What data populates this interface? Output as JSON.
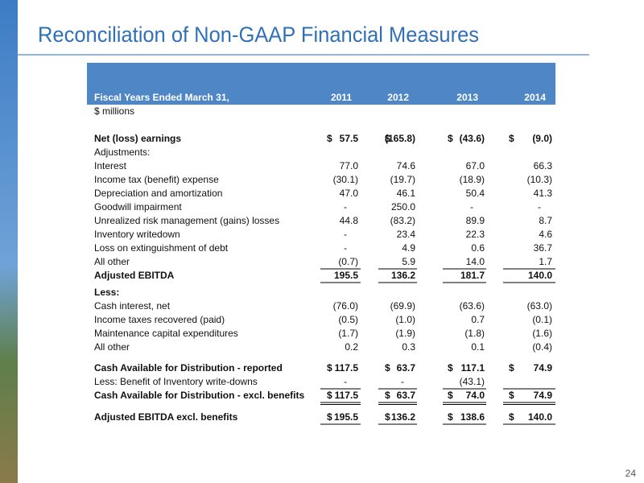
{
  "header": {
    "title": "Reconciliation of Non-GAAP Financial Measures"
  },
  "page_number": "24",
  "table": {
    "heading": "Fiscal Years Ended March 31,",
    "columns": [
      "2011",
      "2012",
      "2013",
      "2014"
    ],
    "units": "$ millions",
    "rows": [
      {
        "label": "Net (loss) earnings",
        "currency": "$",
        "values": [
          "57.5",
          "(165.8)",
          "(43.6)",
          "(9.0)"
        ],
        "bold": true
      },
      {
        "label": "Adjustments:"
      },
      {
        "label": "Interest",
        "values": [
          "77.0",
          "74.6",
          "67.0",
          "66.3"
        ]
      },
      {
        "label": "Income tax (benefit) expense",
        "values": [
          "(30.1)",
          "(19.7)",
          "(18.9)",
          "(10.3)"
        ]
      },
      {
        "label": "Depreciation and amortization",
        "values": [
          "47.0",
          "46.1",
          "50.4",
          "41.3"
        ]
      },
      {
        "label": "Goodwill impairment",
        "values": [
          "-",
          "250.0",
          "-",
          "-"
        ]
      },
      {
        "label": "Unrealized risk management (gains) losses",
        "values": [
          "44.8",
          "(83.2)",
          "89.9",
          "8.7"
        ]
      },
      {
        "label": "Inventory writedown",
        "values": [
          "-",
          "23.4",
          "22.3",
          "4.6"
        ]
      },
      {
        "label": "Loss on extinguishment of debt",
        "values": [
          "-",
          "4.9",
          "0.6",
          "36.7"
        ]
      },
      {
        "label": "All other",
        "values": [
          "(0.7)",
          "5.9",
          "14.0",
          "1.7"
        ],
        "rule": "single"
      },
      {
        "label": "Adjusted EBITDA",
        "values": [
          "195.5",
          "136.2",
          "181.7",
          "140.0"
        ],
        "bold": true,
        "rule": "single"
      },
      {
        "label": "Less:",
        "bold": true
      },
      {
        "label": "Cash interest, net",
        "values": [
          "(76.0)",
          "(69.9)",
          "(63.6)",
          "(63.0)"
        ]
      },
      {
        "label": "Income taxes recovered (paid)",
        "values": [
          "(0.5)",
          "(1.0)",
          "0.7",
          "(0.1)"
        ]
      },
      {
        "label": "Maintenance capital expenditures",
        "values": [
          "(1.7)",
          "(1.9)",
          "(1.8)",
          "(1.6)"
        ]
      },
      {
        "label": "All other",
        "values": [
          "0.2",
          "0.3",
          "0.1",
          "(0.4)"
        ]
      },
      {
        "label": "Cash Available for Distribution - reported",
        "currency": "$",
        "values": [
          "117.5",
          "63.7",
          "117.1",
          "74.9"
        ],
        "bold": true
      },
      {
        "label": "Less:  Benefit of Inventory write-downs",
        "values": [
          "-",
          "-",
          "(43.1)",
          null
        ],
        "rule": "single"
      },
      {
        "label": "Cash Available for Distribution - excl. benefits",
        "currency": "$",
        "values": [
          "117.5",
          "63.7",
          "74.0",
          "74.9"
        ],
        "bold": true,
        "rule": "double"
      },
      {
        "label": "Adjusted EBITDA excl. benefits",
        "currency": "$",
        "values": [
          "195.5",
          "136.2",
          "138.6",
          "140.0"
        ],
        "bold": true,
        "rule": "single"
      }
    ]
  }
}
